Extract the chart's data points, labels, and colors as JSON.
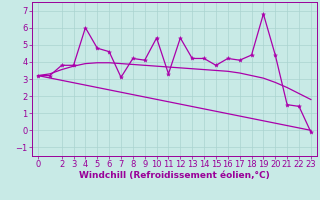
{
  "xlabel": "Windchill (Refroidissement éolien,°C)",
  "bg_color": "#c8eae6",
  "grid_color": "#aad4d0",
  "line_color": "#aa00aa",
  "x_values": [
    0,
    1,
    2,
    3,
    4,
    5,
    6,
    7,
    8,
    9,
    10,
    11,
    12,
    13,
    14,
    15,
    16,
    17,
    18,
    19,
    20,
    21,
    22,
    23
  ],
  "y_main": [
    3.2,
    3.2,
    3.8,
    3.8,
    6.0,
    4.8,
    4.6,
    3.1,
    4.2,
    4.1,
    5.4,
    3.3,
    5.4,
    4.2,
    4.2,
    3.8,
    4.2,
    4.1,
    4.4,
    6.8,
    4.4,
    1.5,
    1.4,
    -0.1
  ],
  "y_smooth": [
    3.2,
    3.3,
    3.55,
    3.75,
    3.9,
    3.95,
    3.95,
    3.9,
    3.85,
    3.8,
    3.75,
    3.7,
    3.65,
    3.6,
    3.55,
    3.5,
    3.45,
    3.35,
    3.2,
    3.05,
    2.8,
    2.5,
    2.15,
    1.8
  ],
  "trend_x": [
    0,
    23
  ],
  "trend_y": [
    3.2,
    0.0
  ],
  "ylim": [
    -1.5,
    7.5
  ],
  "xlim": [
    -0.5,
    23.5
  ],
  "yticks": [
    -1,
    0,
    1,
    2,
    3,
    4,
    5,
    6,
    7
  ],
  "xticks": [
    0,
    2,
    3,
    4,
    5,
    6,
    7,
    8,
    9,
    10,
    11,
    12,
    13,
    14,
    15,
    16,
    17,
    18,
    19,
    20,
    21,
    22,
    23
  ],
  "font_color": "#990099",
  "xlabel_fontsize": 6.5,
  "tick_fontsize": 6,
  "marker_size": 3,
  "line_width": 0.9
}
